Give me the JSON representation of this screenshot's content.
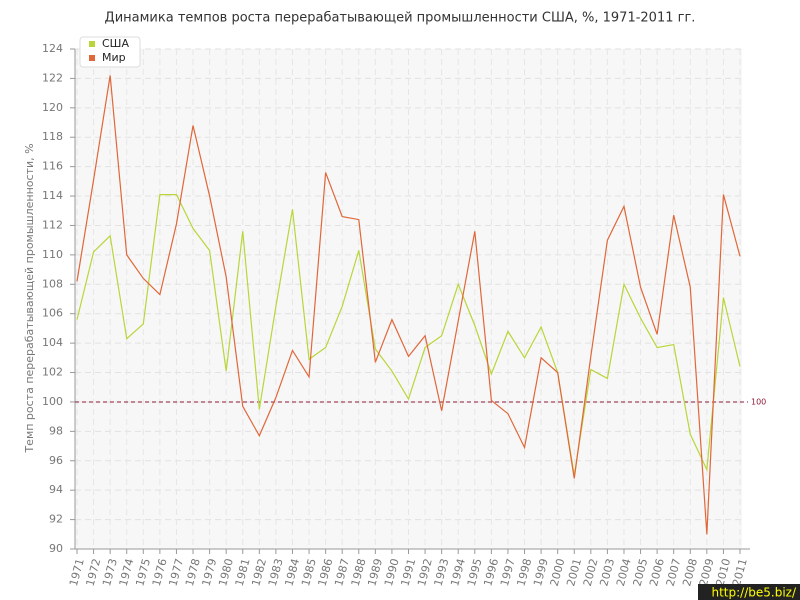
{
  "chart_data": {
    "type": "line",
    "title": "Динамика темпов роста перерабатывающей промышленности США, %, 1971-2011 гг.",
    "y_label": "Темп роста перерабатывающей промышленности, %",
    "categories": [
      "1971",
      "1972",
      "1973",
      "1974",
      "1975",
      "1976",
      "1977",
      "1978",
      "1979",
      "1980",
      "1981",
      "1982",
      "1983",
      "1984",
      "1985",
      "1986",
      "1987",
      "1988",
      "1989",
      "1990",
      "1991",
      "1992",
      "1993",
      "1994",
      "1995",
      "1996",
      "1997",
      "1998",
      "1999",
      "2000",
      "2001",
      "2002",
      "2003",
      "2004",
      "2005",
      "2006",
      "2007",
      "2008",
      "2009",
      "2010",
      "2011"
    ],
    "series": [
      {
        "name": "США",
        "color": "#b8d63a",
        "values": [
          105.6,
          110.2,
          111.3,
          104.3,
          105.3,
          114.1,
          114.1,
          111.8,
          110.3,
          102.1,
          111.6,
          99.5,
          106.5,
          113.1,
          102.9,
          103.7,
          106.5,
          110.3,
          103.6,
          102.1,
          100.2,
          103.7,
          104.5,
          108.0,
          105.2,
          101.9,
          104.8,
          103.0,
          105.1,
          102.0,
          95.0,
          102.2,
          101.6,
          108.0,
          105.7,
          103.7,
          103.9,
          97.8,
          95.4,
          107.1,
          102.4
        ]
      },
      {
        "name": "Мир",
        "color": "#e0673a",
        "values": [
          108.2,
          115.1,
          122.2,
          110.0,
          108.4,
          107.3,
          112.1,
          118.8,
          114.0,
          108.5,
          99.7,
          97.7,
          100.3,
          103.5,
          101.7,
          115.6,
          112.6,
          112.4,
          102.7,
          105.6,
          103.1,
          104.5,
          99.4,
          105.5,
          111.6,
          100.1,
          99.2,
          96.9,
          103.0,
          102.0,
          94.8,
          103.1,
          111.0,
          113.3,
          107.8,
          104.6,
          112.7,
          107.8,
          91.0,
          114.1,
          109.9
        ]
      }
    ],
    "ylim": [
      90,
      124
    ],
    "yticks": [
      90,
      92,
      94,
      96,
      98,
      100,
      102,
      104,
      106,
      108,
      110,
      112,
      114,
      116,
      118,
      120,
      122,
      124
    ],
    "hline": 100,
    "hline_color": "#8b1a3a",
    "grid": true,
    "legend": "top-left",
    "watermark": "http://be5.biz/"
  }
}
